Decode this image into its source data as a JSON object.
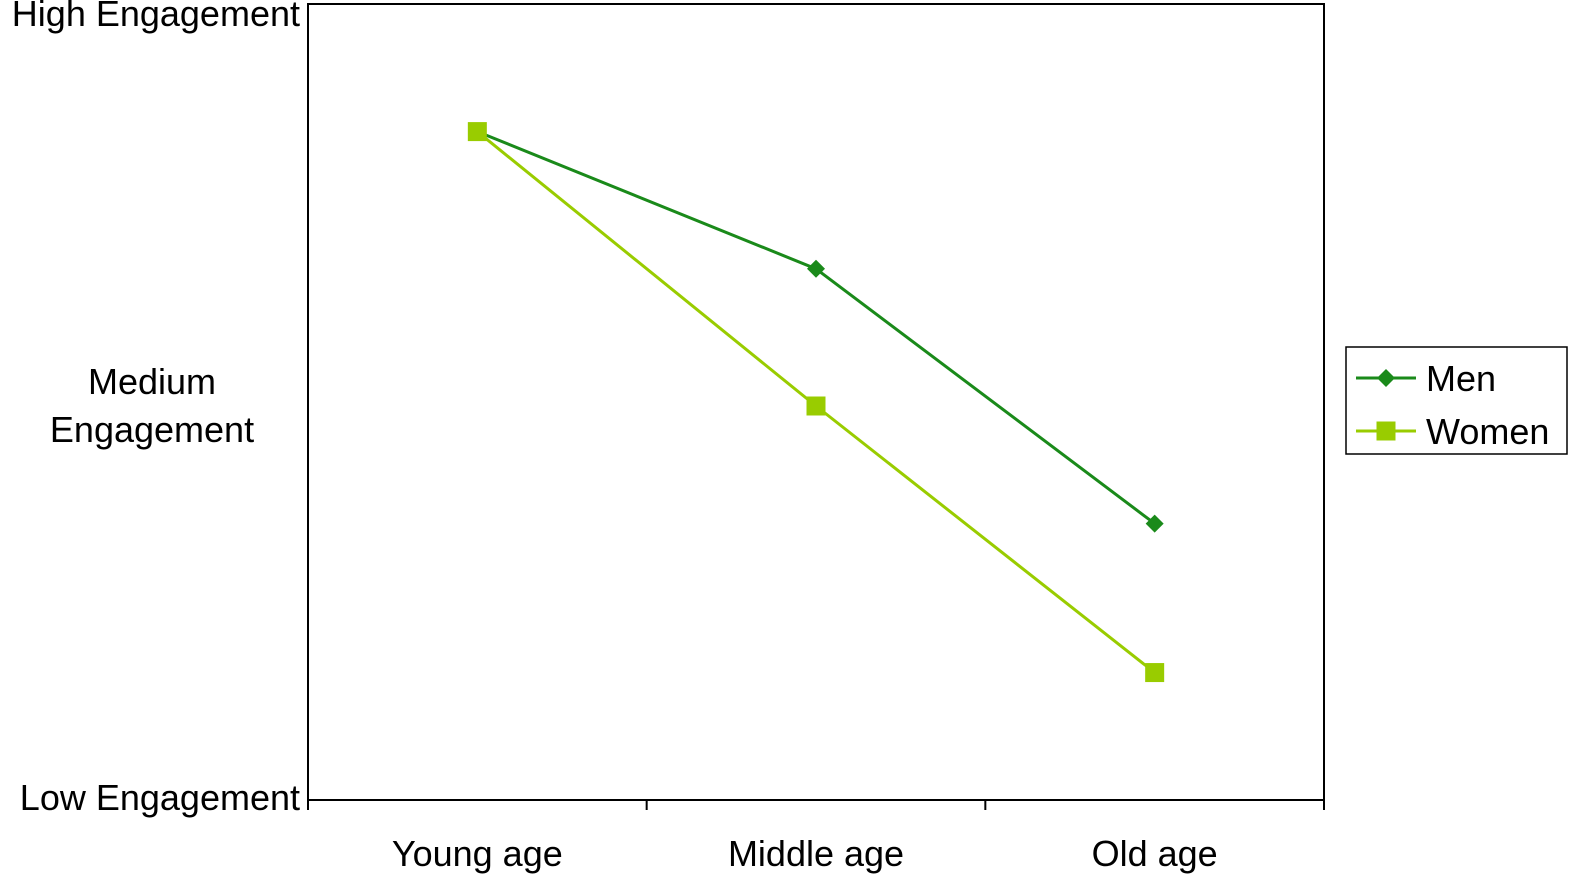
{
  "chart_data": {
    "type": "line",
    "title": "",
    "xlabel": "",
    "ylabel": "",
    "categories": [
      "Young age",
      "Middle age",
      "Old age"
    ],
    "y_tick_labels": [
      {
        "value": 0,
        "lines": [
          "Low Engagement"
        ]
      },
      {
        "value": 50,
        "lines": [
          "Medium",
          "Engagement"
        ]
      },
      {
        "value": 100,
        "lines": [
          "High Engagement"
        ]
      }
    ],
    "ylim": [
      0,
      100
    ],
    "grid": false,
    "legend_position": "right",
    "series": [
      {
        "name": "Men",
        "values": [
          85,
          67.5,
          35
        ],
        "color": "#1a8a1a",
        "marker": "diamond"
      },
      {
        "name": "Women",
        "values": [
          85,
          50,
          16
        ],
        "color": "#99cc00",
        "marker": "square"
      }
    ]
  }
}
